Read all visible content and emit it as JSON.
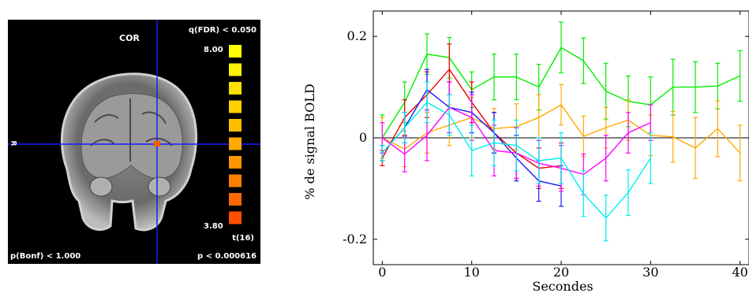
{
  "brain": {
    "view_label": "COR",
    "threshold_top": "q(FDR) < 0.050",
    "scale_max": "8.00",
    "scale_min": "3.80",
    "stat_label": "t(16)",
    "bonf_label": "p(Bonf) < 1.000",
    "p_label": "p < 0.000616",
    "side_label": "R",
    "scale_colors": [
      "#ffff00",
      "#fff200",
      "#ffe000",
      "#ffd000",
      "#ffbe00",
      "#ffaa00",
      "#ff9600",
      "#ff8000",
      "#ff6a00",
      "#ff5000"
    ],
    "crosshair_color": "#1a1aff"
  },
  "chart_data": {
    "type": "line",
    "xlabel": "Secondes",
    "ylabel": "% de signal BOLD",
    "xlim": [
      -1,
      41
    ],
    "ylim": [
      -0.25,
      0.25
    ],
    "xticks": [
      0,
      10,
      20,
      30,
      40
    ],
    "xtick_labels": [
      "0",
      "10",
      "20",
      "30",
      "40"
    ],
    "yticks": [
      -0.2,
      0,
      0.2
    ],
    "ytick_labels": [
      "-0.2",
      "0",
      "0.2"
    ],
    "grid": false,
    "series": [
      {
        "color": "#00ee00",
        "x": [
          0,
          2.5,
          5,
          7.5,
          10,
          12.5,
          15,
          17.5,
          20,
          22.5,
          25,
          27.5,
          30,
          32.5,
          35,
          37.5,
          40
        ],
        "y": [
          0,
          0.07,
          0.165,
          0.158,
          0.095,
          0.12,
          0.12,
          0.1,
          0.178,
          0.152,
          0.092,
          0.072,
          0.065,
          0.1,
          0.1,
          0.102,
          0.122
        ],
        "err": [
          0.045,
          0.04,
          0.04,
          0.04,
          0.035,
          0.045,
          0.045,
          0.045,
          0.05,
          0.045,
          0.055,
          0.05,
          0.055,
          0.055,
          0.05,
          0.045,
          0.05
        ]
      },
      {
        "color": "#ffaa00",
        "x": [
          0,
          2.5,
          5,
          7.5,
          10,
          12.5,
          15,
          17.5,
          20,
          22.5,
          25,
          27.5,
          30,
          32.5,
          35,
          37.5,
          40
        ],
        "y": [
          0,
          -0.022,
          0.01,
          0.025,
          0.04,
          0.018,
          0.022,
          0.04,
          0.065,
          0.003,
          0.02,
          0.035,
          0.005,
          0.002,
          -0.02,
          0.018,
          -0.03
        ],
        "err": [
          0.04,
          0.035,
          0.04,
          0.04,
          0.04,
          0.04,
          0.045,
          0.045,
          0.04,
          0.04,
          0.04,
          0.04,
          0.04,
          0.05,
          0.06,
          0.055,
          0.055
        ]
      },
      {
        "color": "#ee0000",
        "x": [
          0,
          2.5,
          5,
          7.5,
          10,
          12.5,
          15,
          17.5,
          20
        ],
        "y": [
          -0.04,
          0.04,
          0.085,
          0.135,
          0.07,
          0.01,
          -0.03,
          -0.06,
          -0.055
        ],
        "err": [
          0.015,
          0.035,
          0.045,
          0.05,
          0.04,
          0.04,
          0.05,
          0.04,
          0.045
        ]
      },
      {
        "color": "#1a1aff",
        "x": [
          0,
          2.5,
          5,
          7.5,
          10,
          12.5,
          15,
          17.5,
          20
        ],
        "y": [
          -0.03,
          0.02,
          0.095,
          0.06,
          0.05,
          0.01,
          -0.04,
          -0.085,
          -0.095
        ],
        "err": [
          0.015,
          0.03,
          0.04,
          0.05,
          0.04,
          0.04,
          0.045,
          0.04,
          0.04
        ]
      },
      {
        "color": "#ff00ff",
        "x": [
          0,
          2.5,
          5,
          7.5,
          10,
          12.5,
          15,
          17.5,
          20,
          22.5,
          25,
          27.5,
          30
        ],
        "y": [
          0,
          -0.032,
          0.005,
          0.06,
          0.04,
          -0.025,
          -0.03,
          -0.05,
          -0.06,
          -0.072,
          -0.04,
          0.01,
          0.03
        ],
        "err": [
          0.03,
          0.035,
          0.05,
          0.05,
          0.045,
          0.05,
          0.05,
          0.045,
          0.045,
          0.04,
          0.045,
          0.04,
          0.035
        ]
      },
      {
        "color": "#00eeee",
        "x": [
          0,
          2.5,
          5,
          7.5,
          10,
          12.5,
          15,
          17.5,
          20,
          22.5,
          25,
          27.5,
          30
        ],
        "y": [
          -0.03,
          0.02,
          0.07,
          0.045,
          -0.025,
          -0.01,
          -0.015,
          -0.045,
          -0.04,
          -0.11,
          -0.158,
          -0.108,
          -0.04
        ],
        "err": [
          0.015,
          0.03,
          0.04,
          0.04,
          0.05,
          0.045,
          0.05,
          0.045,
          0.05,
          0.045,
          0.045,
          0.045,
          0.05
        ]
      }
    ]
  }
}
